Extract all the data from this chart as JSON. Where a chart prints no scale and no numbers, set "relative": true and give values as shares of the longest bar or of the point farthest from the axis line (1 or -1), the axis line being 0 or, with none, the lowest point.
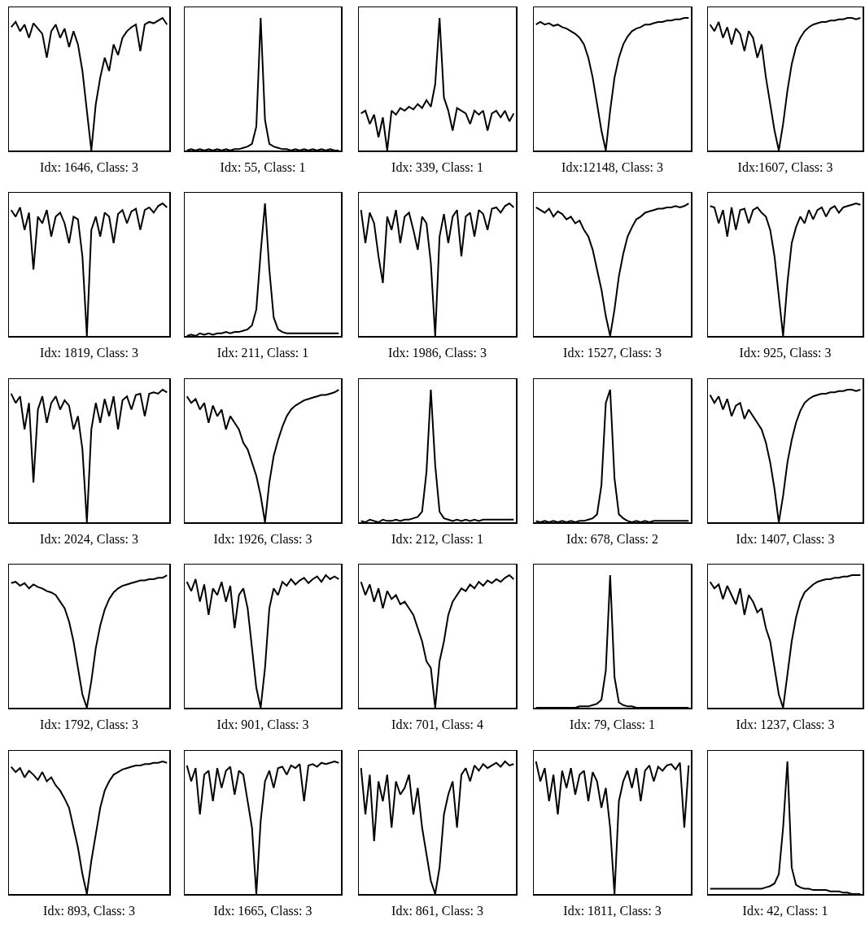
{
  "chart_data": [
    {
      "type": "line",
      "relative": true,
      "tick_labels": false,
      "color": "#000000",
      "xlabel": "Idx: 1646, Class: 3",
      "categories": [
        null,
        null,
        null,
        null,
        null,
        null,
        null,
        null,
        null,
        null,
        null,
        null,
        null,
        null,
        null,
        null,
        null,
        null,
        null,
        null,
        null,
        null,
        null,
        null,
        null,
        null,
        null,
        null,
        null,
        null,
        null,
        null,
        null,
        null,
        null,
        null
      ],
      "values": [
        0.93,
        0.97,
        0.9,
        0.95,
        0.85,
        0.96,
        0.92,
        0.88,
        0.7,
        0.9,
        0.95,
        0.85,
        0.92,
        0.78,
        0.9,
        0.8,
        0.6,
        0.3,
        0.0,
        0.35,
        0.55,
        0.7,
        0.6,
        0.8,
        0.72,
        0.85,
        0.9,
        0.93,
        0.95,
        0.75,
        0.95,
        0.97,
        0.96,
        0.98,
        1.0,
        0.95
      ]
    },
    {
      "type": "line",
      "relative": true,
      "tick_labels": false,
      "color": "#000000",
      "xlabel": "Idx: 55, Class: 1",
      "categories": [
        null,
        null,
        null,
        null,
        null,
        null,
        null,
        null,
        null,
        null,
        null,
        null,
        null,
        null,
        null,
        null,
        null,
        null,
        null,
        null,
        null,
        null,
        null,
        null,
        null,
        null,
        null,
        null,
        null,
        null,
        null,
        null,
        null,
        null,
        null,
        null
      ],
      "values": [
        0.0,
        0.01,
        0.0,
        0.01,
        0.0,
        0.01,
        0.0,
        0.01,
        0.0,
        0.01,
        0.0,
        0.01,
        0.01,
        0.02,
        0.03,
        0.05,
        0.18,
        1.0,
        0.23,
        0.05,
        0.03,
        0.02,
        0.01,
        0.01,
        0.0,
        0.01,
        0.0,
        0.01,
        0.0,
        0.01,
        0.0,
        0.01,
        0.0,
        0.01,
        0.0,
        0.0
      ]
    },
    {
      "type": "line",
      "relative": true,
      "tick_labels": false,
      "color": "#000000",
      "xlabel": "Idx: 339, Class: 1",
      "categories": [
        null,
        null,
        null,
        null,
        null,
        null,
        null,
        null,
        null,
        null,
        null,
        null,
        null,
        null,
        null,
        null,
        null,
        null,
        null,
        null,
        null,
        null,
        null,
        null,
        null,
        null,
        null,
        null,
        null,
        null,
        null,
        null,
        null,
        null,
        null,
        null
      ],
      "values": [
        0.28,
        0.3,
        0.2,
        0.27,
        0.1,
        0.25,
        0.0,
        0.3,
        0.27,
        0.32,
        0.3,
        0.33,
        0.31,
        0.35,
        0.32,
        0.38,
        0.33,
        0.5,
        1.0,
        0.4,
        0.3,
        0.15,
        0.32,
        0.3,
        0.28,
        0.2,
        0.3,
        0.27,
        0.3,
        0.15,
        0.28,
        0.3,
        0.25,
        0.3,
        0.22,
        0.28
      ]
    },
    {
      "type": "line",
      "relative": true,
      "tick_labels": false,
      "color": "#000000",
      "xlabel": "Idx:12148, Class: 3",
      "categories": [
        null,
        null,
        null,
        null,
        null,
        null,
        null,
        null,
        null,
        null,
        null,
        null,
        null,
        null,
        null,
        null,
        null,
        null,
        null,
        null,
        null,
        null,
        null,
        null,
        null,
        null,
        null,
        null,
        null,
        null,
        null,
        null,
        null,
        null,
        null,
        null
      ],
      "values": [
        0.95,
        0.97,
        0.95,
        0.96,
        0.94,
        0.95,
        0.93,
        0.92,
        0.9,
        0.88,
        0.85,
        0.8,
        0.7,
        0.55,
        0.35,
        0.15,
        0.0,
        0.3,
        0.55,
        0.7,
        0.8,
        0.86,
        0.9,
        0.92,
        0.93,
        0.95,
        0.95,
        0.96,
        0.97,
        0.97,
        0.98,
        0.98,
        0.99,
        0.99,
        1.0,
        1.0
      ]
    },
    {
      "type": "line",
      "relative": true,
      "tick_labels": false,
      "color": "#000000",
      "xlabel": "Idx:1607, Class: 3",
      "categories": [
        null,
        null,
        null,
        null,
        null,
        null,
        null,
        null,
        null,
        null,
        null,
        null,
        null,
        null,
        null,
        null,
        null,
        null,
        null,
        null,
        null,
        null,
        null,
        null,
        null,
        null,
        null,
        null,
        null,
        null,
        null,
        null,
        null,
        null,
        null,
        null
      ],
      "values": [
        0.95,
        0.9,
        0.97,
        0.85,
        0.93,
        0.8,
        0.92,
        0.88,
        0.75,
        0.9,
        0.85,
        0.7,
        0.8,
        0.55,
        0.35,
        0.15,
        0.0,
        0.2,
        0.45,
        0.65,
        0.78,
        0.85,
        0.9,
        0.93,
        0.95,
        0.96,
        0.97,
        0.97,
        0.98,
        0.98,
        0.99,
        0.99,
        1.0,
        1.0,
        0.99,
        1.0
      ]
    },
    {
      "type": "line",
      "relative": true,
      "tick_labels": false,
      "color": "#000000",
      "xlabel": "Idx: 1819, Class: 3",
      "categories": [
        null,
        null,
        null,
        null,
        null,
        null,
        null,
        null,
        null,
        null,
        null,
        null,
        null,
        null,
        null,
        null,
        null,
        null,
        null,
        null,
        null,
        null,
        null,
        null,
        null,
        null,
        null,
        null,
        null,
        null,
        null,
        null,
        null,
        null,
        null,
        null
      ],
      "values": [
        0.95,
        0.9,
        0.97,
        0.8,
        0.93,
        0.5,
        0.9,
        0.85,
        0.95,
        0.75,
        0.9,
        0.93,
        0.85,
        0.7,
        0.9,
        0.88,
        0.6,
        0.0,
        0.8,
        0.9,
        0.75,
        0.93,
        0.9,
        0.7,
        0.92,
        0.95,
        0.85,
        0.94,
        0.96,
        0.8,
        0.95,
        0.97,
        0.93,
        0.98,
        1.0,
        0.97
      ]
    },
    {
      "type": "line",
      "relative": true,
      "tick_labels": false,
      "color": "#000000",
      "xlabel": "Idx: 211, Class: 1",
      "categories": [
        null,
        null,
        null,
        null,
        null,
        null,
        null,
        null,
        null,
        null,
        null,
        null,
        null,
        null,
        null,
        null,
        null,
        null,
        null,
        null,
        null,
        null,
        null,
        null,
        null,
        null,
        null,
        null,
        null,
        null,
        null,
        null,
        null,
        null,
        null,
        null
      ],
      "values": [
        0.0,
        0.01,
        0.0,
        0.02,
        0.01,
        0.02,
        0.01,
        0.02,
        0.02,
        0.03,
        0.02,
        0.03,
        0.03,
        0.04,
        0.05,
        0.08,
        0.2,
        0.63,
        1.0,
        0.5,
        0.14,
        0.05,
        0.03,
        0.02,
        0.02,
        0.02,
        0.02,
        0.02,
        0.02,
        0.02,
        0.02,
        0.02,
        0.02,
        0.02,
        0.02,
        0.02
      ]
    },
    {
      "type": "line",
      "relative": true,
      "tick_labels": false,
      "color": "#000000",
      "xlabel": "Idx: 1986, Class: 3",
      "categories": [
        null,
        null,
        null,
        null,
        null,
        null,
        null,
        null,
        null,
        null,
        null,
        null,
        null,
        null,
        null,
        null,
        null,
        null,
        null,
        null,
        null,
        null,
        null,
        null,
        null,
        null,
        null,
        null,
        null,
        null,
        null,
        null,
        null,
        null,
        null,
        null
      ],
      "values": [
        0.95,
        0.7,
        0.93,
        0.85,
        0.6,
        0.4,
        0.9,
        0.8,
        0.95,
        0.7,
        0.9,
        0.93,
        0.8,
        0.65,
        0.9,
        0.85,
        0.55,
        0.0,
        0.75,
        0.92,
        0.7,
        0.9,
        0.95,
        0.6,
        0.9,
        0.93,
        0.75,
        0.95,
        0.92,
        0.8,
        0.96,
        0.97,
        0.93,
        0.98,
        1.0,
        0.97
      ]
    },
    {
      "type": "line",
      "relative": true,
      "tick_labels": false,
      "color": "#000000",
      "xlabel": "Idx: 1527, Class: 3",
      "categories": [
        null,
        null,
        null,
        null,
        null,
        null,
        null,
        null,
        null,
        null,
        null,
        null,
        null,
        null,
        null,
        null,
        null,
        null,
        null,
        null,
        null,
        null,
        null,
        null,
        null,
        null,
        null,
        null,
        null,
        null,
        null,
        null,
        null,
        null,
        null,
        null
      ],
      "values": [
        0.97,
        0.95,
        0.93,
        0.96,
        0.9,
        0.94,
        0.92,
        0.88,
        0.9,
        0.85,
        0.87,
        0.8,
        0.75,
        0.65,
        0.5,
        0.35,
        0.15,
        0.0,
        0.2,
        0.45,
        0.62,
        0.75,
        0.82,
        0.88,
        0.9,
        0.93,
        0.94,
        0.95,
        0.96,
        0.96,
        0.97,
        0.97,
        0.98,
        0.97,
        0.98,
        1.0
      ]
    },
    {
      "type": "line",
      "relative": true,
      "tick_labels": false,
      "color": "#000000",
      "xlabel": "Idx: 925, Class: 3",
      "categories": [
        null,
        null,
        null,
        null,
        null,
        null,
        null,
        null,
        null,
        null,
        null,
        null,
        null,
        null,
        null,
        null,
        null,
        null,
        null,
        null,
        null,
        null,
        null,
        null,
        null,
        null,
        null,
        null,
        null,
        null,
        null,
        null,
        null,
        null,
        null,
        null
      ],
      "values": [
        0.98,
        0.97,
        0.85,
        0.95,
        0.75,
        0.97,
        0.8,
        0.95,
        0.96,
        0.85,
        0.95,
        0.97,
        0.93,
        0.9,
        0.8,
        0.6,
        0.3,
        0.0,
        0.4,
        0.7,
        0.82,
        0.9,
        0.85,
        0.95,
        0.88,
        0.95,
        0.97,
        0.9,
        0.96,
        0.98,
        0.93,
        0.97,
        0.98,
        0.99,
        1.0,
        0.99
      ]
    },
    {
      "type": "line",
      "relative": true,
      "tick_labels": false,
      "color": "#000000",
      "xlabel": "Idx: 2024, Class: 3",
      "categories": [
        null,
        null,
        null,
        null,
        null,
        null,
        null,
        null,
        null,
        null,
        null,
        null,
        null,
        null,
        null,
        null,
        null,
        null,
        null,
        null,
        null,
        null,
        null,
        null,
        null,
        null,
        null,
        null,
        null,
        null,
        null,
        null,
        null,
        null,
        null,
        null
      ],
      "values": [
        0.97,
        0.9,
        0.95,
        0.7,
        0.9,
        0.3,
        0.85,
        0.95,
        0.75,
        0.9,
        0.95,
        0.85,
        0.92,
        0.88,
        0.7,
        0.8,
        0.55,
        0.0,
        0.7,
        0.9,
        0.75,
        0.93,
        0.8,
        0.95,
        0.7,
        0.92,
        0.95,
        0.85,
        0.96,
        0.97,
        0.8,
        0.97,
        0.98,
        0.97,
        1.0,
        0.98
      ]
    },
    {
      "type": "line",
      "relative": true,
      "tick_labels": false,
      "color": "#000000",
      "xlabel": "Idx: 1926, Class: 3",
      "categories": [
        null,
        null,
        null,
        null,
        null,
        null,
        null,
        null,
        null,
        null,
        null,
        null,
        null,
        null,
        null,
        null,
        null,
        null,
        null,
        null,
        null,
        null,
        null,
        null,
        null,
        null,
        null,
        null,
        null,
        null,
        null,
        null,
        null,
        null,
        null,
        null
      ],
      "values": [
        0.95,
        0.9,
        0.93,
        0.85,
        0.9,
        0.75,
        0.88,
        0.8,
        0.85,
        0.7,
        0.8,
        0.75,
        0.7,
        0.6,
        0.55,
        0.45,
        0.35,
        0.2,
        0.0,
        0.3,
        0.5,
        0.62,
        0.72,
        0.8,
        0.85,
        0.88,
        0.9,
        0.92,
        0.93,
        0.94,
        0.95,
        0.96,
        0.96,
        0.97,
        0.98,
        1.0
      ]
    },
    {
      "type": "line",
      "relative": true,
      "tick_labels": false,
      "color": "#000000",
      "xlabel": "Idx: 212, Class: 1",
      "categories": [
        null,
        null,
        null,
        null,
        null,
        null,
        null,
        null,
        null,
        null,
        null,
        null,
        null,
        null,
        null,
        null,
        null,
        null,
        null,
        null,
        null,
        null,
        null,
        null,
        null,
        null,
        null,
        null,
        null,
        null,
        null,
        null,
        null,
        null,
        null,
        null
      ],
      "values": [
        0.01,
        0.0,
        0.02,
        0.01,
        0.0,
        0.02,
        0.01,
        0.01,
        0.02,
        0.01,
        0.02,
        0.02,
        0.03,
        0.04,
        0.08,
        0.38,
        1.0,
        0.43,
        0.08,
        0.03,
        0.02,
        0.01,
        0.02,
        0.01,
        0.02,
        0.01,
        0.02,
        0.01,
        0.02,
        0.02,
        0.02,
        0.02,
        0.02,
        0.02,
        0.02,
        0.02
      ]
    },
    {
      "type": "line",
      "relative": true,
      "tick_labels": false,
      "color": "#000000",
      "xlabel": "Idx: 678, Class: 2",
      "categories": [
        null,
        null,
        null,
        null,
        null,
        null,
        null,
        null,
        null,
        null,
        null,
        null,
        null,
        null,
        null,
        null,
        null,
        null,
        null,
        null,
        null,
        null,
        null,
        null,
        null,
        null,
        null,
        null,
        null,
        null,
        null,
        null,
        null,
        null,
        null,
        null
      ],
      "values": [
        0.01,
        0.0,
        0.01,
        0.0,
        0.01,
        0.0,
        0.01,
        0.0,
        0.01,
        0.0,
        0.01,
        0.01,
        0.02,
        0.03,
        0.06,
        0.28,
        0.9,
        1.0,
        0.33,
        0.06,
        0.03,
        0.01,
        0.0,
        0.01,
        0.0,
        0.01,
        0.0,
        0.01,
        0.01,
        0.01,
        0.01,
        0.01,
        0.01,
        0.01,
        0.01,
        0.01
      ]
    },
    {
      "type": "line",
      "relative": true,
      "tick_labels": false,
      "color": "#000000",
      "xlabel": "Idx: 1407, Class: 3",
      "categories": [
        null,
        null,
        null,
        null,
        null,
        null,
        null,
        null,
        null,
        null,
        null,
        null,
        null,
        null,
        null,
        null,
        null,
        null,
        null,
        null,
        null,
        null,
        null,
        null,
        null,
        null,
        null,
        null,
        null,
        null,
        null,
        null,
        null,
        null,
        null,
        null
      ],
      "values": [
        0.96,
        0.9,
        0.95,
        0.85,
        0.93,
        0.8,
        0.88,
        0.9,
        0.78,
        0.85,
        0.8,
        0.75,
        0.7,
        0.6,
        0.45,
        0.25,
        0.0,
        0.2,
        0.45,
        0.62,
        0.75,
        0.84,
        0.9,
        0.93,
        0.95,
        0.96,
        0.97,
        0.97,
        0.98,
        0.98,
        0.99,
        0.99,
        1.0,
        1.0,
        0.99,
        1.0
      ]
    },
    {
      "type": "line",
      "relative": true,
      "tick_labels": false,
      "color": "#000000",
      "xlabel": "Idx: 1792, Class: 3",
      "categories": [
        null,
        null,
        null,
        null,
        null,
        null,
        null,
        null,
        null,
        null,
        null,
        null,
        null,
        null,
        null,
        null,
        null,
        null,
        null,
        null,
        null,
        null,
        null,
        null,
        null,
        null,
        null,
        null,
        null,
        null,
        null,
        null,
        null,
        null,
        null,
        null
      ],
      "values": [
        0.94,
        0.95,
        0.92,
        0.94,
        0.9,
        0.93,
        0.91,
        0.9,
        0.88,
        0.87,
        0.85,
        0.8,
        0.75,
        0.65,
        0.5,
        0.3,
        0.1,
        0.0,
        0.2,
        0.45,
        0.62,
        0.74,
        0.82,
        0.87,
        0.9,
        0.92,
        0.93,
        0.94,
        0.95,
        0.96,
        0.96,
        0.97,
        0.97,
        0.98,
        0.98,
        1.0
      ]
    },
    {
      "type": "line",
      "relative": true,
      "tick_labels": false,
      "color": "#000000",
      "xlabel": "Idx: 901, Class: 3",
      "categories": [
        null,
        null,
        null,
        null,
        null,
        null,
        null,
        null,
        null,
        null,
        null,
        null,
        null,
        null,
        null,
        null,
        null,
        null,
        null,
        null,
        null,
        null,
        null,
        null,
        null,
        null,
        null,
        null,
        null,
        null,
        null,
        null,
        null,
        null,
        null,
        null
      ],
      "values": [
        0.95,
        0.88,
        0.97,
        0.8,
        0.93,
        0.7,
        0.9,
        0.85,
        0.95,
        0.8,
        0.92,
        0.6,
        0.85,
        0.9,
        0.75,
        0.45,
        0.15,
        0.0,
        0.3,
        0.75,
        0.9,
        0.85,
        0.95,
        0.92,
        0.97,
        0.93,
        0.96,
        0.98,
        0.94,
        0.97,
        0.99,
        0.95,
        1.0,
        0.97,
        0.99,
        0.97
      ]
    },
    {
      "type": "line",
      "relative": true,
      "tick_labels": false,
      "color": "#000000",
      "xlabel": "Idx: 701, Class: 4",
      "categories": [
        null,
        null,
        null,
        null,
        null,
        null,
        null,
        null,
        null,
        null,
        null,
        null,
        null,
        null,
        null,
        null,
        null,
        null,
        null,
        null,
        null,
        null,
        null,
        null,
        null,
        null,
        null,
        null,
        null,
        null,
        null,
        null,
        null,
        null,
        null,
        null
      ],
      "values": [
        0.95,
        0.85,
        0.93,
        0.8,
        0.9,
        0.75,
        0.88,
        0.82,
        0.85,
        0.78,
        0.8,
        0.75,
        0.7,
        0.6,
        0.5,
        0.35,
        0.3,
        0.0,
        0.35,
        0.5,
        0.7,
        0.8,
        0.85,
        0.9,
        0.88,
        0.93,
        0.9,
        0.95,
        0.92,
        0.96,
        0.94,
        0.97,
        0.95,
        0.98,
        1.0,
        0.97
      ]
    },
    {
      "type": "line",
      "relative": true,
      "tick_labels": false,
      "color": "#000000",
      "xlabel": "Idx: 79, Class: 1",
      "categories": [
        null,
        null,
        null,
        null,
        null,
        null,
        null,
        null,
        null,
        null,
        null,
        null,
        null,
        null,
        null,
        null,
        null,
        null,
        null,
        null,
        null,
        null,
        null,
        null,
        null,
        null,
        null,
        null,
        null,
        null,
        null,
        null,
        null,
        null,
        null,
        null
      ],
      "values": [
        0.0,
        0.0,
        0.0,
        0.0,
        0.0,
        0.0,
        0.0,
        0.0,
        0.0,
        0.0,
        0.01,
        0.01,
        0.01,
        0.02,
        0.03,
        0.06,
        0.28,
        1.0,
        0.23,
        0.04,
        0.02,
        0.01,
        0.01,
        0.0,
        0.0,
        0.0,
        0.0,
        0.0,
        0.0,
        0.0,
        0.0,
        0.0,
        0.0,
        0.0,
        0.0,
        0.0
      ]
    },
    {
      "type": "line",
      "relative": true,
      "tick_labels": false,
      "color": "#000000",
      "xlabel": "Idx: 1237, Class: 3",
      "categories": [
        null,
        null,
        null,
        null,
        null,
        null,
        null,
        null,
        null,
        null,
        null,
        null,
        null,
        null,
        null,
        null,
        null,
        null,
        null,
        null,
        null,
        null,
        null,
        null,
        null,
        null,
        null,
        null,
        null,
        null,
        null,
        null,
        null,
        null,
        null,
        null
      ],
      "values": [
        0.95,
        0.9,
        0.93,
        0.82,
        0.92,
        0.85,
        0.78,
        0.9,
        0.7,
        0.85,
        0.8,
        0.72,
        0.75,
        0.6,
        0.5,
        0.3,
        0.1,
        0.0,
        0.25,
        0.5,
        0.68,
        0.8,
        0.87,
        0.9,
        0.93,
        0.95,
        0.96,
        0.97,
        0.97,
        0.98,
        0.98,
        0.99,
        0.99,
        1.0,
        1.0,
        1.0
      ]
    },
    {
      "type": "line",
      "relative": true,
      "tick_labels": false,
      "color": "#000000",
      "xlabel": "Idx: 893, Class: 3",
      "categories": [
        null,
        null,
        null,
        null,
        null,
        null,
        null,
        null,
        null,
        null,
        null,
        null,
        null,
        null,
        null,
        null,
        null,
        null,
        null,
        null,
        null,
        null,
        null,
        null,
        null,
        null,
        null,
        null,
        null,
        null,
        null,
        null,
        null,
        null,
        null,
        null
      ],
      "values": [
        0.96,
        0.92,
        0.95,
        0.88,
        0.93,
        0.9,
        0.86,
        0.92,
        0.85,
        0.88,
        0.82,
        0.78,
        0.72,
        0.65,
        0.5,
        0.35,
        0.15,
        0.0,
        0.25,
        0.45,
        0.65,
        0.78,
        0.85,
        0.9,
        0.92,
        0.94,
        0.95,
        0.96,
        0.97,
        0.97,
        0.98,
        0.98,
        0.99,
        0.99,
        1.0,
        0.99
      ]
    },
    {
      "type": "line",
      "relative": true,
      "tick_labels": false,
      "color": "#000000",
      "xlabel": "Idx: 1665, Class: 3",
      "categories": [
        null,
        null,
        null,
        null,
        null,
        null,
        null,
        null,
        null,
        null,
        null,
        null,
        null,
        null,
        null,
        null,
        null,
        null,
        null,
        null,
        null,
        null,
        null,
        null,
        null,
        null,
        null,
        null,
        null,
        null,
        null,
        null,
        null,
        null,
        null,
        null
      ],
      "values": [
        0.97,
        0.85,
        0.95,
        0.6,
        0.9,
        0.93,
        0.7,
        0.95,
        0.8,
        0.93,
        0.96,
        0.75,
        0.93,
        0.9,
        0.7,
        0.5,
        0.0,
        0.55,
        0.85,
        0.93,
        0.8,
        0.95,
        0.96,
        0.9,
        0.97,
        0.95,
        0.98,
        0.7,
        0.97,
        0.98,
        0.96,
        0.99,
        0.98,
        0.99,
        1.0,
        0.99
      ]
    },
    {
      "type": "line",
      "relative": true,
      "tick_labels": false,
      "color": "#000000",
      "xlabel": "Idx: 861, Class: 3",
      "categories": [
        null,
        null,
        null,
        null,
        null,
        null,
        null,
        null,
        null,
        null,
        null,
        null,
        null,
        null,
        null,
        null,
        null,
        null,
        null,
        null,
        null,
        null,
        null,
        null,
        null,
        null,
        null,
        null,
        null,
        null,
        null,
        null,
        null,
        null,
        null,
        null
      ],
      "values": [
        0.95,
        0.6,
        0.9,
        0.4,
        0.85,
        0.7,
        0.9,
        0.5,
        0.85,
        0.75,
        0.8,
        0.9,
        0.6,
        0.8,
        0.5,
        0.3,
        0.1,
        0.0,
        0.2,
        0.6,
        0.75,
        0.85,
        0.5,
        0.9,
        0.95,
        0.85,
        0.97,
        0.93,
        0.98,
        0.95,
        0.97,
        0.99,
        0.96,
        1.0,
        0.97,
        0.98
      ]
    },
    {
      "type": "line",
      "relative": true,
      "tick_labels": false,
      "color": "#000000",
      "xlabel": "Idx: 1811, Class: 3",
      "categories": [
        null,
        null,
        null,
        null,
        null,
        null,
        null,
        null,
        null,
        null,
        null,
        null,
        null,
        null,
        null,
        null,
        null,
        null,
        null,
        null,
        null,
        null,
        null,
        null,
        null,
        null,
        null,
        null,
        null,
        null,
        null,
        null,
        null,
        null,
        null,
        null
      ],
      "values": [
        1.0,
        0.85,
        0.95,
        0.7,
        0.9,
        0.6,
        0.93,
        0.8,
        0.95,
        0.75,
        0.9,
        0.93,
        0.7,
        0.92,
        0.85,
        0.65,
        0.8,
        0.5,
        0.0,
        0.7,
        0.85,
        0.93,
        0.8,
        0.95,
        0.7,
        0.93,
        0.97,
        0.85,
        0.96,
        0.93,
        0.97,
        0.98,
        0.94,
        0.99,
        0.5,
        0.97
      ]
    },
    {
      "type": "line",
      "relative": true,
      "tick_labels": false,
      "color": "#000000",
      "xlabel": "Idx: 42, Class: 1",
      "categories": [
        null,
        null,
        null,
        null,
        null,
        null,
        null,
        null,
        null,
        null,
        null,
        null,
        null,
        null,
        null,
        null,
        null,
        null,
        null,
        null,
        null,
        null,
        null,
        null,
        null,
        null,
        null,
        null,
        null,
        null,
        null,
        null,
        null,
        null,
        null,
        null
      ],
      "values": [
        0.04,
        0.04,
        0.04,
        0.04,
        0.04,
        0.04,
        0.04,
        0.04,
        0.04,
        0.04,
        0.04,
        0.04,
        0.04,
        0.05,
        0.06,
        0.08,
        0.15,
        0.5,
        1.0,
        0.2,
        0.07,
        0.05,
        0.04,
        0.04,
        0.03,
        0.03,
        0.03,
        0.03,
        0.02,
        0.02,
        0.02,
        0.01,
        0.01,
        0.0,
        0.0,
        0.0
      ]
    }
  ]
}
